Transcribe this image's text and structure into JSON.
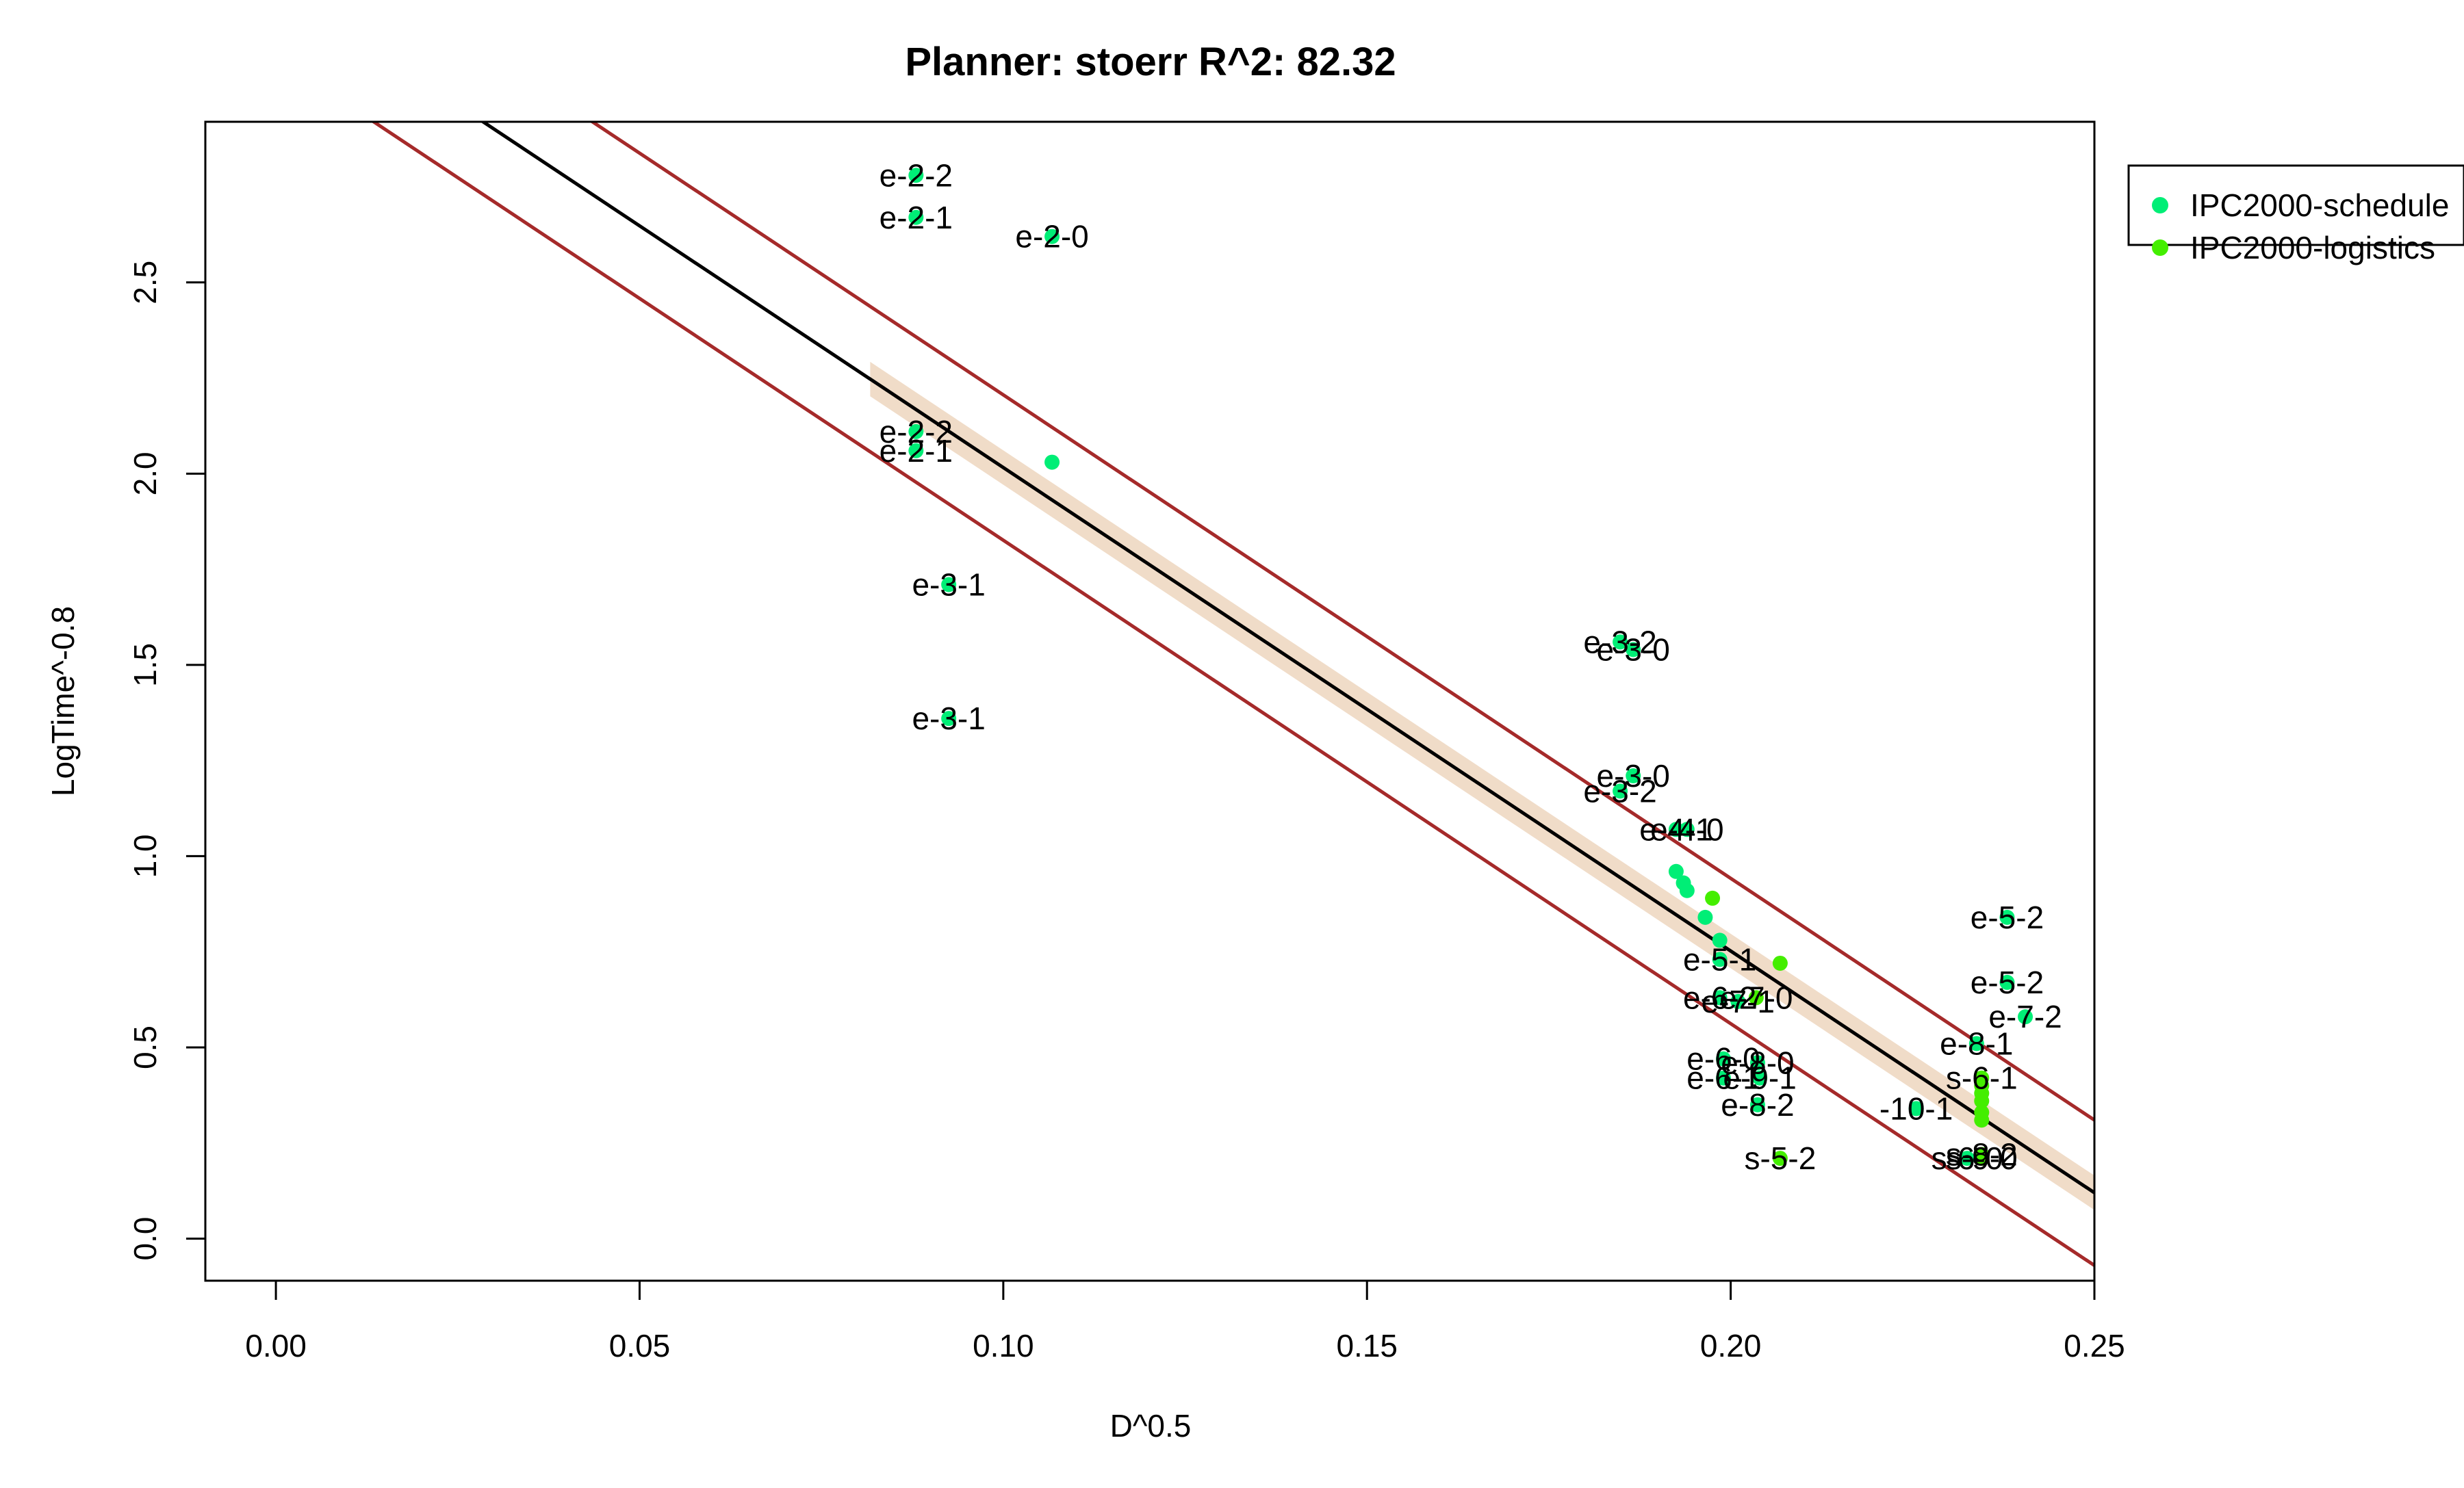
{
  "chart_data": {
    "type": "scatter",
    "title": "Planner: stoerr R^2: 82.32",
    "xlabel": "D^0.5",
    "ylabel": "LogTime^-0.8",
    "xlim": [
      -0.0097,
      0.25
    ],
    "ylim": [
      -0.11,
      2.92
    ],
    "xticks": [
      0.0,
      0.05,
      0.1,
      0.15,
      0.2,
      0.25
    ],
    "xtick_labels": [
      "0.00",
      "0.05",
      "0.10",
      "0.15",
      "0.20",
      "0.25"
    ],
    "yticks": [
      0.0,
      0.5,
      1.0,
      1.5,
      2.0,
      2.5
    ],
    "ytick_labels": [
      "0.0",
      "0.5",
      "1.0",
      "1.5",
      "2.0",
      "2.5"
    ],
    "grid": false,
    "legend_position": "top-right, outside plot area",
    "regression": {
      "intercept": 3.28,
      "slope": -12.64,
      "color": "#000000",
      "confidence_x_range": [
        0.0817,
        0.25
      ],
      "confidence_halfwidth": 0.045,
      "confidence_fill": "#f0dcc8",
      "prediction_halfwidth": 0.19,
      "prediction_color": "#a52a2a"
    },
    "series": [
      {
        "name": "IPC2000-schedule",
        "color": "#00ee76",
        "points": [
          {
            "x": 0.088,
            "y": 2.78,
            "label": "e-2-2"
          },
          {
            "x": 0.088,
            "y": 2.67,
            "label": "e-2-1"
          },
          {
            "x": 0.1067,
            "y": 2.62,
            "label": "e-2-0"
          },
          {
            "x": 0.088,
            "y": 2.11,
            "label": "e-2-2"
          },
          {
            "x": 0.088,
            "y": 2.06,
            "label": "e-2-1"
          },
          {
            "x": 0.1067,
            "y": 2.03,
            "label": ""
          },
          {
            "x": 0.0925,
            "y": 1.71,
            "label": "e-3-1"
          },
          {
            "x": 0.0925,
            "y": 1.36,
            "label": "e-3-1"
          },
          {
            "x": 0.1848,
            "y": 1.56,
            "label": "e-3-2"
          },
          {
            "x": 0.1866,
            "y": 1.54,
            "label": "e-3-0"
          },
          {
            "x": 0.1866,
            "y": 1.21,
            "label": "e-3-0"
          },
          {
            "x": 0.1848,
            "y": 1.17,
            "label": "e-3-2"
          },
          {
            "x": 0.1925,
            "y": 1.07,
            "label": "e-4-1"
          },
          {
            "x": 0.194,
            "y": 1.07,
            "label": "e-4-0"
          },
          {
            "x": 0.1925,
            "y": 0.96,
            "label": ""
          },
          {
            "x": 0.1935,
            "y": 0.93,
            "label": ""
          },
          {
            "x": 0.194,
            "y": 0.91,
            "label": ""
          },
          {
            "x": 0.1965,
            "y": 0.84,
            "label": ""
          },
          {
            "x": 0.1985,
            "y": 0.78,
            "label": ""
          },
          {
            "x": 0.1985,
            "y": 0.73,
            "label": "e-5-1"
          },
          {
            "x": 0.1985,
            "y": 0.63,
            "label": "e-6-2"
          },
          {
            "x": 0.201,
            "y": 0.62,
            "label": "e-7-1"
          },
          {
            "x": 0.199,
            "y": 0.47,
            "label": "e-6-0"
          },
          {
            "x": 0.2037,
            "y": 0.46,
            "label": "e-8-0"
          },
          {
            "x": 0.199,
            "y": 0.42,
            "label": "e-6-1"
          },
          {
            "x": 0.204,
            "y": 0.42,
            "label": "e-9-1"
          },
          {
            "x": 0.2037,
            "y": 0.35,
            "label": "e-8-2"
          },
          {
            "x": 0.238,
            "y": 0.84,
            "label": "e-5-2"
          },
          {
            "x": 0.238,
            "y": 0.67,
            "label": "e-5-2"
          },
          {
            "x": 0.2405,
            "y": 0.58,
            "label": "e-7-2"
          },
          {
            "x": 0.2338,
            "y": 0.51,
            "label": "e-8-1"
          },
          {
            "x": 0.2255,
            "y": 0.34,
            "label": "-10-1"
          },
          {
            "x": 0.2325,
            "y": 0.21,
            "label": "s-6-0"
          }
        ]
      },
      {
        "name": "IPC2000-logistics",
        "color": "#44ee00",
        "points": [
          {
            "x": 0.1975,
            "y": 0.89,
            "label": ""
          },
          {
            "x": 0.2035,
            "y": 0.63,
            "label": "e-7-0"
          },
          {
            "x": 0.2068,
            "y": 0.72,
            "label": ""
          },
          {
            "x": 0.2068,
            "y": 0.21,
            "label": "s-5-2"
          },
          {
            "x": 0.2345,
            "y": 0.42,
            "label": "s-6-1"
          },
          {
            "x": 0.2345,
            "y": 0.4,
            "label": ""
          },
          {
            "x": 0.2345,
            "y": 0.38,
            "label": ""
          },
          {
            "x": 0.2345,
            "y": 0.36,
            "label": ""
          },
          {
            "x": 0.2345,
            "y": 0.33,
            "label": ""
          },
          {
            "x": 0.2345,
            "y": 0.31,
            "label": ""
          },
          {
            "x": 0.2345,
            "y": 0.22,
            "label": "s-8-2"
          },
          {
            "x": 0.2345,
            "y": 0.21,
            "label": "s-9-0"
          }
        ]
      }
    ]
  }
}
